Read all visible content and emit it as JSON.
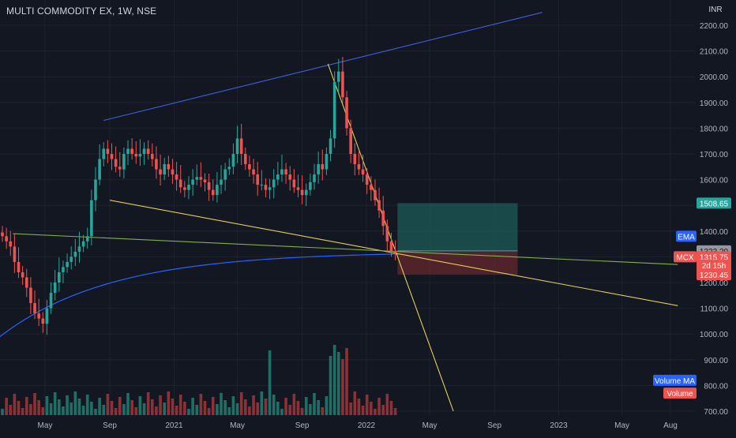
{
  "header": {
    "symbol_title": "MULTI COMMODITY EX, 1W, NSE"
  },
  "currency": "INR",
  "chart_data": {
    "type": "candlestick",
    "price_axis": {
      "ticks": [
        "2200.00",
        "2100.00",
        "2000.00",
        "1900.00",
        "1800.00",
        "1700.00",
        "1600.00",
        "1500.00",
        "1400.00",
        "1300.00",
        "1200.00",
        "1100.00",
        "1000.00",
        "900.00",
        "800.00",
        "700.00"
      ],
      "range": [
        680,
        2230
      ]
    },
    "time_axis": {
      "labels": [
        "May",
        "Sep",
        "2021",
        "May",
        "Sep",
        "2022",
        "May",
        "Sep",
        "2023",
        "May",
        "Aug"
      ],
      "label_positions_note": "approximate dates",
      "dates": [
        "2020-05-01",
        "2020-09-01",
        "2021-01-01",
        "2021-05-01",
        "2021-09-01",
        "2022-01-01",
        "2022-05-01",
        "2022-09-01",
        "2023-01-01",
        "2023-05-01",
        "2023-08-01"
      ]
    },
    "price_labels": {
      "target": "1508.65",
      "ema_tag": "EMA",
      "ema_value": "1323.20",
      "symbol_tag": "MCX",
      "last_price": "1315.75",
      "countdown": "2d 15h",
      "stop": "1230.45",
      "volume_ma_tag": "Volume MA",
      "volume_tag": "Volume"
    },
    "colors": {
      "up": "#26a69a",
      "down": "#ef5350",
      "ema": "#2962ff",
      "trend_blue": "#3f62d8",
      "trend_yellow": "#e3cf55",
      "trend_green": "#81b04a",
      "target_zone": "#1e5f5a",
      "stop_zone": "#6b2a2e",
      "volume_up": "#1f6f66",
      "volume_down": "#8b3236"
    },
    "candles_weekly_close": [
      1380,
      1360,
      1340,
      1280,
      1240,
      1220,
      1180,
      1120,
      1080,
      1060,
      1040,
      1100,
      1160,
      1200,
      1240,
      1260,
      1280,
      1300,
      1320,
      1340,
      1360,
      1380,
      1520,
      1600,
      1680,
      1720,
      1700,
      1680,
      1650,
      1640,
      1700,
      1720,
      1700,
      1690,
      1700,
      1720,
      1700,
      1680,
      1640,
      1620,
      1660,
      1640,
      1620,
      1600,
      1570,
      1560,
      1580,
      1600,
      1610,
      1600,
      1590,
      1560,
      1540,
      1580,
      1600,
      1640,
      1650,
      1700,
      1760,
      1700,
      1660,
      1640,
      1620,
      1580,
      1580,
      1560,
      1570,
      1600,
      1620,
      1640,
      1620,
      1600,
      1570,
      1560,
      1540,
      1560,
      1590,
      1620,
      1660,
      1640,
      1700,
      1760,
      1980,
      2020,
      1920,
      1800,
      1700,
      1660,
      1640,
      1620,
      1580,
      1560,
      1520,
      1480,
      1420,
      1360,
      1323,
      1315
    ],
    "trendlines": [
      {
        "name": "upper channel",
        "from": [
          "2020-08-20",
          1830
        ],
        "to": [
          "2022-12-01",
          2250
        ]
      },
      {
        "name": "lower trend",
        "from": [
          "2020-09-01",
          1520
        ],
        "to": [
          "2023-08-15",
          1110
        ]
      },
      {
        "name": "long support",
        "from": [
          "2020-03-01",
          1390
        ],
        "to": [
          "2023-08-15",
          1270
        ]
      },
      {
        "name": "descending resistance",
        "from": [
          "2021-10-20",
          2050
        ],
        "to": [
          "2022-06-15",
          700
        ]
      }
    ],
    "zones": [
      {
        "name": "target",
        "from": [
          "2022-03-01",
          1508.65
        ],
        "to": [
          "2022-10-15",
          1320
        ]
      },
      {
        "name": "stop",
        "from": [
          "2022-03-01",
          1320
        ],
        "to": [
          "2022-10-15",
          1230.45
        ]
      }
    ]
  }
}
